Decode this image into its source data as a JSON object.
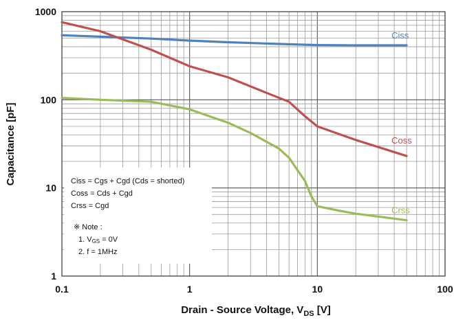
{
  "chart_data": {
    "type": "line",
    "xscale": "log",
    "yscale": "log",
    "xlim": [
      0.1,
      100
    ],
    "ylim": [
      1,
      1000
    ],
    "grid": true,
    "xlabel": "Drain - Source Voltage, V",
    "xlabel_sub": "DS",
    "xlabel_unit": " [V]",
    "ylabel": "Capacitance  [pF]",
    "xticks": [
      "0.1",
      "1",
      "10",
      "100"
    ],
    "yticks": [
      "1",
      "10",
      "100",
      "1000"
    ],
    "series": [
      {
        "name": "Ciss",
        "color": "#4f81bd",
        "points": [
          [
            0.1,
            540
          ],
          [
            0.2,
            520
          ],
          [
            0.5,
            495
          ],
          [
            1,
            470
          ],
          [
            2,
            450
          ],
          [
            5,
            430
          ],
          [
            10,
            418
          ],
          [
            20,
            415
          ],
          [
            50,
            415
          ]
        ]
      },
      {
        "name": "Coss",
        "color": "#c0504d",
        "points": [
          [
            0.1,
            760
          ],
          [
            0.2,
            600
          ],
          [
            0.5,
            370
          ],
          [
            1,
            240
          ],
          [
            2,
            180
          ],
          [
            4,
            120
          ],
          [
            6,
            95
          ],
          [
            8,
            65
          ],
          [
            10,
            50
          ],
          [
            20,
            35
          ],
          [
            50,
            23
          ]
        ]
      },
      {
        "name": "Crss",
        "color": "#9bbb59",
        "points": [
          [
            0.1,
            105
          ],
          [
            0.2,
            100
          ],
          [
            0.5,
            95
          ],
          [
            1,
            78
          ],
          [
            2,
            55
          ],
          [
            3,
            42
          ],
          [
            5,
            28
          ],
          [
            6,
            22
          ],
          [
            8,
            12
          ],
          [
            9,
            8
          ],
          [
            10,
            6.2
          ],
          [
            15,
            5.5
          ],
          [
            20,
            5.1
          ],
          [
            50,
            4.3
          ]
        ]
      }
    ],
    "annotation": {
      "lines": [
        "Ciss = Cgs + Cgd (Cds = shorted)",
        "Coss = Cds + Cgd",
        "Crss = Cgd"
      ],
      "note_title": "※ Note :",
      "note_1": "1. V",
      "note_1_sub": "GS",
      "note_1_rest": " = 0V",
      "note_2": "2. f = 1MHz"
    }
  }
}
